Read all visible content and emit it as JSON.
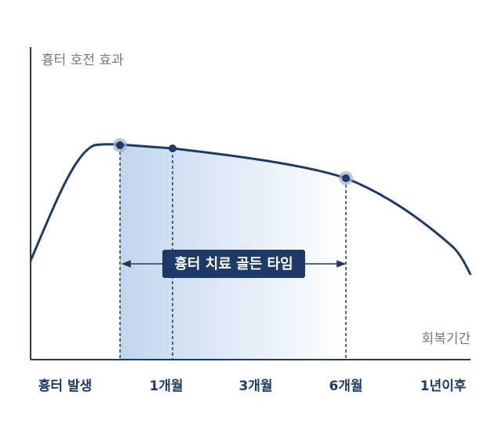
{
  "y_axis_label": "흉터 호전 효과",
  "x_axis_label": "회복기간",
  "x_labels": [
    "흉터 발생",
    "1개월",
    "3개월",
    "6개월",
    "1년이후"
  ],
  "annotation": "흉터 치료 골든 타임"
}
